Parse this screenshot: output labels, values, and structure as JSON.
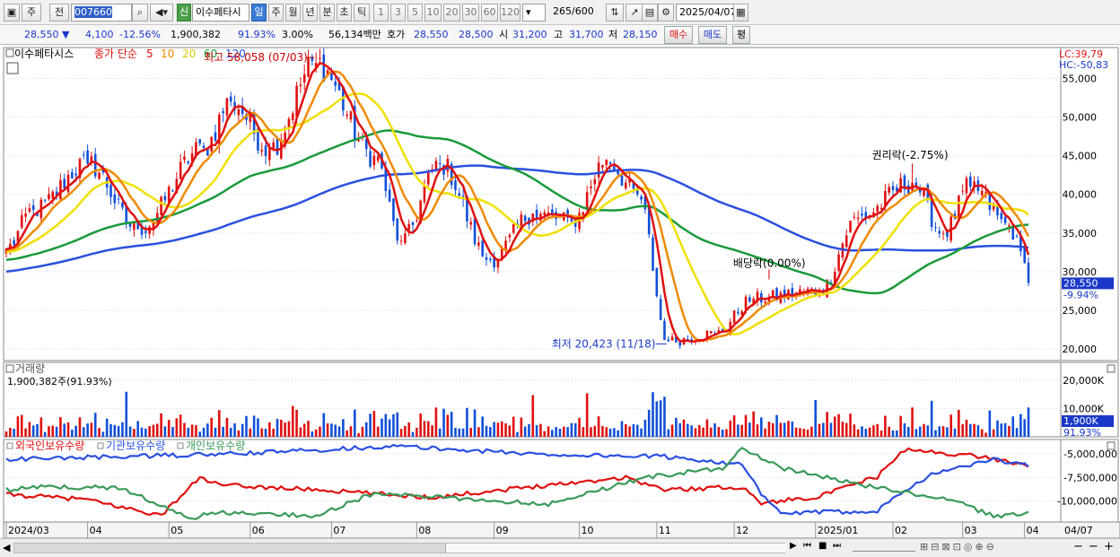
{
  "toolbar": {
    "tab_stock": "주",
    "tab_prev": "전",
    "code": "007660",
    "name": "이수페타시",
    "new_badge": "신",
    "periods": [
      "일",
      "주",
      "월",
      "년",
      "분",
      "초",
      "틱"
    ],
    "active_period": "일",
    "minute_options": [
      "1",
      "3",
      "5",
      "10",
      "20",
      "30",
      "60",
      "120"
    ],
    "count": "265",
    "count_total": "/600",
    "date": "2025/04/07"
  },
  "quote": {
    "price": "28,550",
    "down_arrow": "▼",
    "change": "4,100",
    "change_pct": "-12.56%",
    "volume": "1,900,382",
    "volume_ratio": "91.93%",
    "turnover": "3.00%",
    "amount": "56,134백만",
    "ask_label": "호가",
    "ask": "28,550",
    "bid": "28,500",
    "open_label": "시",
    "open": "31,200",
    "high_label": "고",
    "high": "31,700",
    "low_label": "저",
    "low": "28,150",
    "buy_label": "매수",
    "sell_label": "매도",
    "eval_label": "평"
  },
  "colors": {
    "candle_up": "#e01010",
    "candle_down": "#1050d8",
    "ma5": "#e01010",
    "ma10": "#f08a00",
    "ma20": "#f0e000",
    "ma60": "#1a9a3a",
    "ma120": "#2a50e0",
    "foreign": "#e01010",
    "institution": "#2a50e0",
    "individual": "#3a9a5a"
  },
  "chart_data": [
    {
      "type": "candlestick",
      "title": "이수페타시스",
      "legend": [
        "종가 단순",
        "5",
        "10",
        "20",
        "60",
        "120"
      ],
      "lc": "LC:39,79",
      "hc": "HC:-50,83",
      "ylim": [
        18500,
        59000
      ],
      "yticks": [
        20000,
        25000,
        30000,
        35000,
        40000,
        45000,
        50000,
        55000
      ],
      "ytick_labels": [
        "20,000",
        "25,000",
        "30,000",
        "35,000",
        "40,000",
        "45,000",
        "50,000",
        "55,000"
      ],
      "current_label": "28,550",
      "current_value": 28550,
      "current_pct": "-9.94%",
      "annotations": [
        {
          "text": "최고 58,058 (07/03)",
          "value": 58058,
          "date": "07/03"
        },
        {
          "text": "최저 20,423 (11/18)",
          "value": 20423,
          "date": "11/18"
        },
        {
          "text": "배당락(0.00%)",
          "date": "12/27"
        },
        {
          "text": "권리락(-2.75%)",
          "date": "02/20"
        }
      ],
      "keypoints": [
        {
          "date": "2024/03/04",
          "close": 33000
        },
        {
          "date": "2024/03/15",
          "close": 38000
        },
        {
          "date": "2024/04/05",
          "close": 44000
        },
        {
          "date": "2024/04/25",
          "close": 35500
        },
        {
          "date": "2024/05/20",
          "close": 46000
        },
        {
          "date": "2024/05/30",
          "close": 52000
        },
        {
          "date": "2024/06/15",
          "close": 46000
        },
        {
          "date": "2024/07/03",
          "close": 57000
        },
        {
          "date": "2024/07/25",
          "close": 45000
        },
        {
          "date": "2024/08/05",
          "close": 34000
        },
        {
          "date": "2024/08/20",
          "close": 44000
        },
        {
          "date": "2024/09/09",
          "close": 31500
        },
        {
          "date": "2024/09/25",
          "close": 37500
        },
        {
          "date": "2024/10/10",
          "close": 36500
        },
        {
          "date": "2024/10/25",
          "close": 44500
        },
        {
          "date": "2024/11/05",
          "close": 40000
        },
        {
          "date": "2024/11/18",
          "close": 21000
        },
        {
          "date": "2024/12/05",
          "close": 22000
        },
        {
          "date": "2024/12/20",
          "close": 26500
        },
        {
          "date": "2025/01/15",
          "close": 27500
        },
        {
          "date": "2025/01/31",
          "close": 37000
        },
        {
          "date": "2025/02/20",
          "close": 41500
        },
        {
          "date": "2025/03/05",
          "close": 35000
        },
        {
          "date": "2025/03/15",
          "close": 41000
        },
        {
          "date": "2025/03/31",
          "close": 36000
        },
        {
          "date": "2025/04/04",
          "close": 32650
        },
        {
          "date": "2025/04/07",
          "close": 28550
        }
      ]
    },
    {
      "type": "bar",
      "title": "거래량",
      "value_label": "1,900,382주(91.93%)",
      "ylim": [
        0,
        25000
      ],
      "yticks": [
        10000,
        20000
      ],
      "ytick_labels": [
        "10,000K",
        "20,000K"
      ],
      "current_label": "1,900K",
      "current_pct": "91.93%",
      "units": "K"
    },
    {
      "type": "line",
      "series": [
        {
          "name": "외국인보유수량"
        },
        {
          "name": "기관보유수량"
        },
        {
          "name": "개인보유수량"
        }
      ],
      "ylim": [
        -12200000,
        -3500000
      ],
      "yticks": [
        -5000000,
        -7500000,
        -10000000
      ],
      "ytick_labels": [
        "-5,000,000",
        "-7,500,000",
        "-10,000,000"
      ]
    }
  ],
  "xaxis": {
    "ticks": [
      "2024/03",
      "04",
      "05",
      "06",
      "07",
      "08",
      "09",
      "10",
      "11",
      "12",
      "2025/01",
      "02",
      "03",
      "04"
    ],
    "right_label": "04/07"
  }
}
